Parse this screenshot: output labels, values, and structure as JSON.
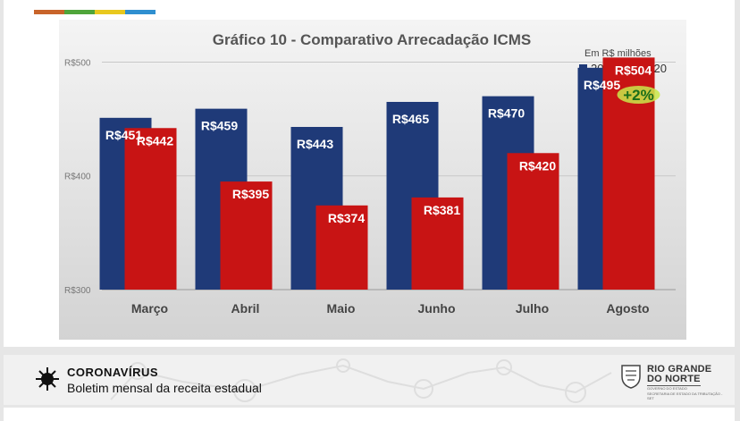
{
  "header": {
    "color_bar": [
      "#c8642a",
      "#4fa53a",
      "#e8c81e",
      "#2f8fd0"
    ]
  },
  "chart_data": {
    "type": "bar",
    "title": "Gráfico 10 - Comparativo Arrecadação ICMS",
    "unit_note": "Em R$ milhões",
    "categories": [
      "Março",
      "Abril",
      "Maio",
      "Junho",
      "Julho",
      "Agosto"
    ],
    "series": [
      {
        "name": "2019",
        "color": "#1f3a78",
        "values": [
          451,
          459,
          443,
          465,
          470,
          495
        ],
        "labels": [
          "R$451",
          "R$459",
          "R$443",
          "R$465",
          "R$470",
          "R$495"
        ]
      },
      {
        "name": "2020",
        "color": "#c81414",
        "values": [
          442,
          395,
          374,
          381,
          420,
          504
        ],
        "labels": [
          "R$442",
          "R$395",
          "R$374",
          "R$381",
          "R$420",
          "R$504"
        ]
      }
    ],
    "ylim": [
      300,
      520
    ],
    "yticks": [
      300,
      400,
      500
    ],
    "ytick_labels": [
      "R$300",
      "R$400",
      "R$500"
    ],
    "grid": true,
    "legend_position": "top-right",
    "annotation": {
      "text": "+2%",
      "category": "Agosto",
      "highlight_color": "#c9e84a",
      "text_color": "#1a6d1a"
    }
  },
  "footer": {
    "title": "CORONAVÍRUS",
    "subtitle": "Boletim mensal da receita estadual",
    "logo": {
      "line1": "RIO GRANDE",
      "line2": "DO NORTE",
      "line3": "GOVERNO DO ESTADO",
      "line4": "SECRETARIA DE ESTADO DA TRIBUTAÇÃO - SET"
    }
  }
}
